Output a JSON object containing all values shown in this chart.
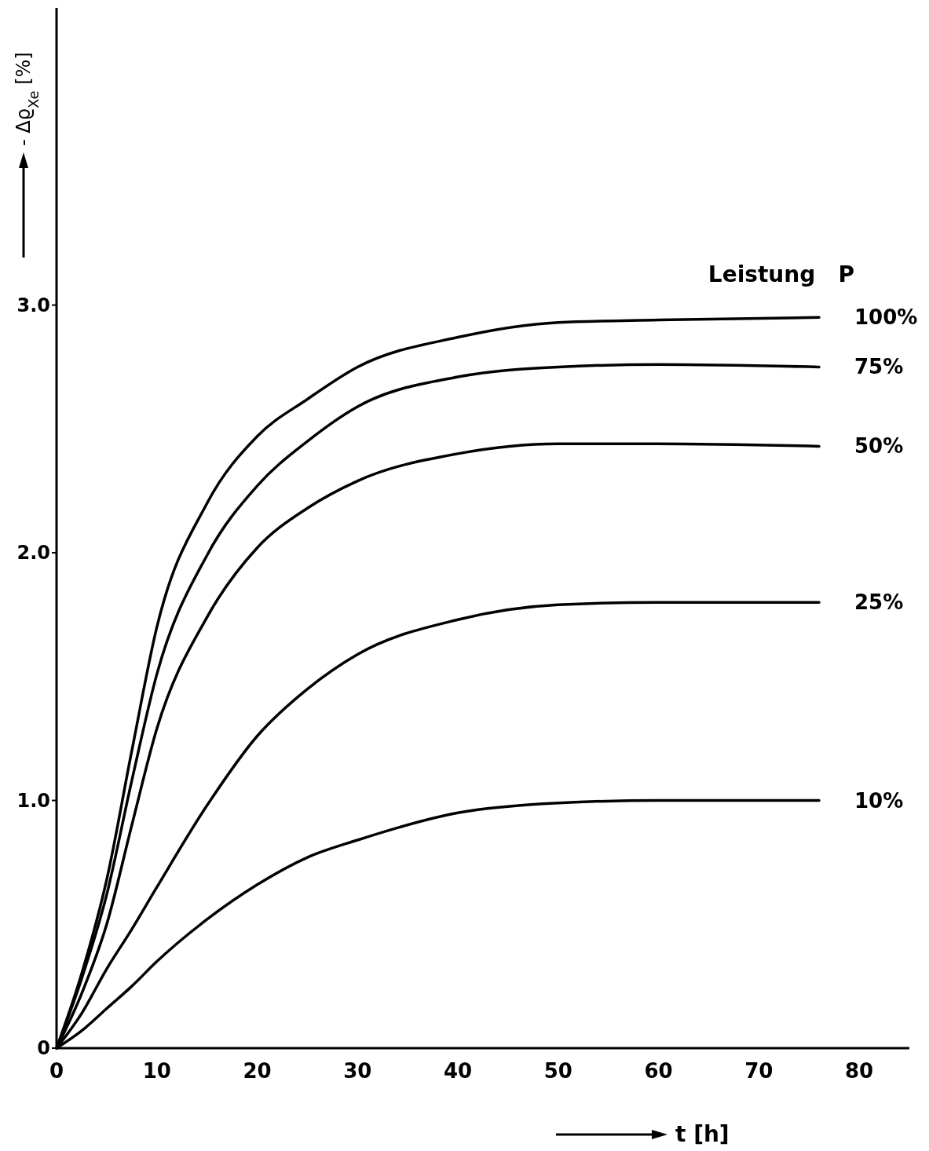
{
  "chart_data": {
    "type": "line",
    "ylabel": "- Δϱ$_{Xe}$ [%]",
    "xlabel": "t [h]",
    "legend_title": "Leistung   P",
    "xlim": [
      0,
      85
    ],
    "ylim": [
      0,
      4.2
    ],
    "xticks": [
      0,
      10,
      20,
      30,
      40,
      50,
      60,
      70,
      80
    ],
    "yticks": [
      0,
      {
        "value": 1,
        "label": "1.0"
      },
      {
        "value": 2,
        "label": "2.0"
      },
      {
        "value": 3,
        "label": "3.0"
      }
    ],
    "grid": false,
    "marker": "none",
    "line_style": "solid",
    "x": [
      0,
      2.5,
      5,
      7.5,
      10,
      15,
      20,
      25,
      30,
      40,
      50,
      60,
      76
    ],
    "series": [
      {
        "name": "100%",
        "color": "#000000",
        "values": [
          0,
          0.3,
          0.68,
          1.2,
          1.7,
          2.2,
          2.47,
          2.62,
          2.75,
          2.87,
          2.93,
          2.94,
          2.95
        ]
      },
      {
        "name": "75%",
        "color": "#000000",
        "values": [
          0,
          0.28,
          0.62,
          1.08,
          1.51,
          1.99,
          2.27,
          2.45,
          2.59,
          2.71,
          2.75,
          2.76,
          2.75
        ]
      },
      {
        "name": "50%",
        "color": "#000000",
        "values": [
          0,
          0.22,
          0.5,
          0.9,
          1.29,
          1.74,
          2.02,
          2.18,
          2.29,
          2.4,
          2.44,
          2.44,
          2.43
        ]
      },
      {
        "name": "25%",
        "color": "#000000",
        "values": [
          0,
          0.14,
          0.32,
          0.48,
          0.65,
          0.98,
          1.26,
          1.45,
          1.59,
          1.73,
          1.79,
          1.8,
          1.8
        ]
      },
      {
        "name": "10%",
        "color": "#000000",
        "values": [
          0,
          0.07,
          0.16,
          0.25,
          0.35,
          0.52,
          0.66,
          0.77,
          0.84,
          0.95,
          0.99,
          1.0,
          1.0
        ]
      }
    ]
  }
}
